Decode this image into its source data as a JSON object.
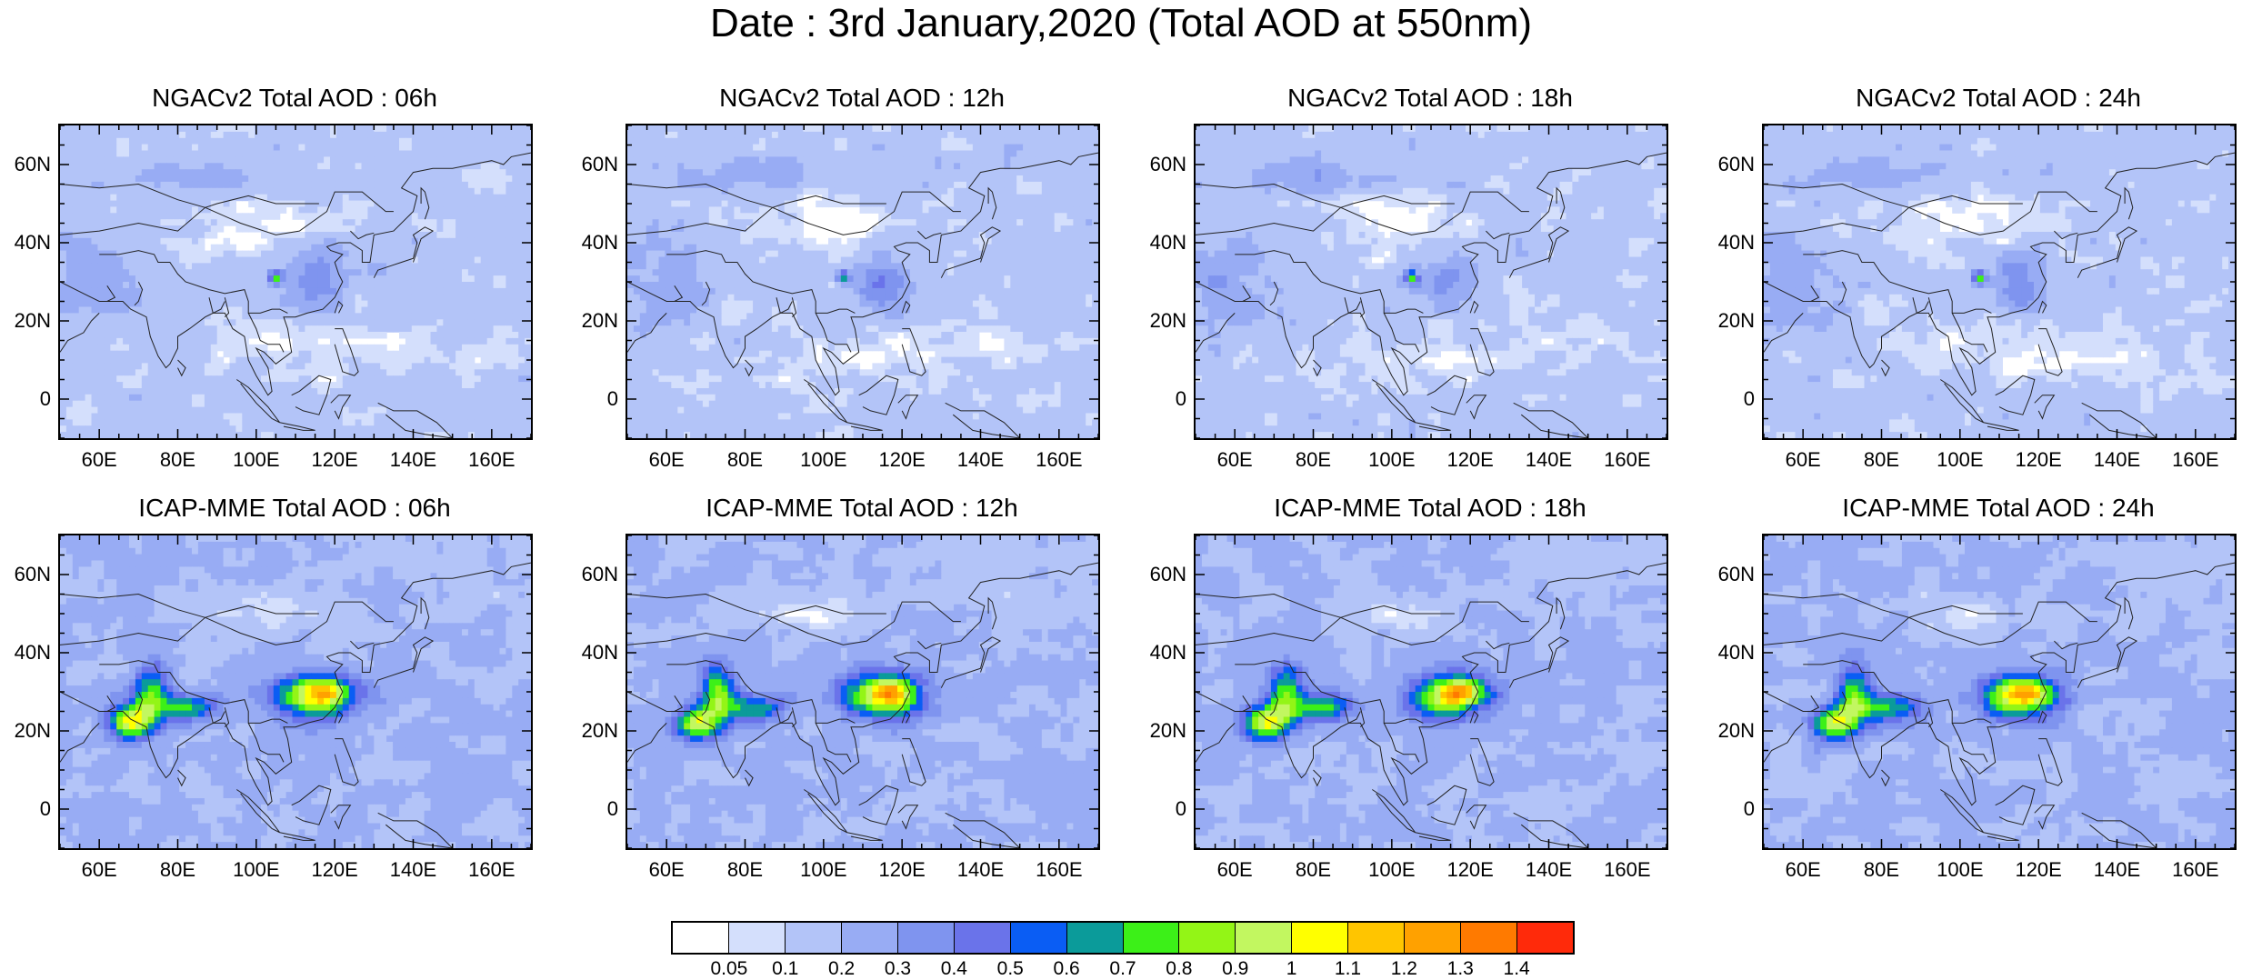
{
  "title": "Date : 3rd January,2020 (Total AOD at 550nm)",
  "panels": [
    {
      "title": "NGACv2 Total AOD : 06h",
      "model": "ngac"
    },
    {
      "title": "NGACv2 Total AOD : 12h",
      "model": "ngac"
    },
    {
      "title": "NGACv2 Total AOD : 18h",
      "model": "ngac"
    },
    {
      "title": "NGACv2 Total AOD : 24h",
      "model": "ngac"
    },
    {
      "title": "ICAP-MME Total AOD : 06h",
      "model": "icap"
    },
    {
      "title": "ICAP-MME Total AOD : 12h",
      "model": "icap"
    },
    {
      "title": "ICAP-MME Total AOD : 18h",
      "model": "icap"
    },
    {
      "title": "ICAP-MME Total AOD : 24h",
      "model": "icap"
    }
  ],
  "axes": {
    "lat_labels": [
      "60N",
      "40N",
      "20N",
      "0"
    ],
    "lon_labels": [
      "60E",
      "80E",
      "100E",
      "120E",
      "140E",
      "160E"
    ]
  },
  "colorbar": {
    "labels": [
      "0.05",
      "0.1",
      "0.2",
      "0.3",
      "0.4",
      "0.5",
      "0.6",
      "0.7",
      "0.8",
      "0.9",
      "1",
      "1.1",
      "1.2",
      "1.3",
      "1.4"
    ],
    "colors": [
      "#ffffff",
      "#d4dffc",
      "#b3c4f8",
      "#98acf4",
      "#7f94ef",
      "#6a73ea",
      "#0a5df4",
      "#0b9b9a",
      "#3cf018",
      "#93f516",
      "#c2f760",
      "#ffff00",
      "#ffc500",
      "#ffa100",
      "#ff7a00",
      "#ff2a0a"
    ]
  }
}
